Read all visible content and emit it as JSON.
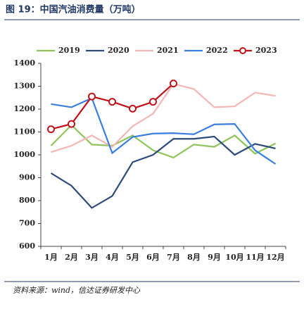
{
  "chart_data": {
    "type": "line",
    "title": "图 19：中国汽油消费量（万吨）",
    "source": "资料来源：wind，信达证券研发中心",
    "categories": [
      "1月",
      "2月",
      "3月",
      "4月",
      "5月",
      "6月",
      "7月",
      "8月",
      "9月",
      "10月",
      "11月",
      "12月"
    ],
    "series": [
      {
        "name": "2019",
        "color": "#8fc45a",
        "values": [
          1040,
          1130,
          1045,
          1040,
          1085,
          1020,
          988,
          1045,
          1035,
          1085,
          1005,
          1050
        ]
      },
      {
        "name": "2020",
        "color": "#2e4a7a",
        "values": [
          920,
          865,
          768,
          820,
          968,
          1000,
          1070,
          1070,
          1080,
          1000,
          1048,
          1028
        ]
      },
      {
        "name": "2021",
        "color": "#f4b6b6",
        "values": [
          1012,
          1040,
          1085,
          1035,
          1125,
          1180,
          1310,
          1288,
          1208,
          1212,
          1272,
          1258
        ]
      },
      {
        "name": "2022",
        "color": "#3a7fe0",
        "values": [
          1222,
          1208,
          1248,
          1008,
          1078,
          1093,
          1095,
          1090,
          1133,
          1135,
          1020,
          960
        ]
      },
      {
        "name": "2023",
        "color": "#c0121b",
        "markers": true,
        "values": [
          1112,
          1135,
          1255,
          1232,
          1202,
          1232,
          1312,
          null,
          null,
          null,
          null,
          null
        ]
      }
    ],
    "ylim": [
      600,
      1400
    ],
    "yticks": [
      600,
      700,
      800,
      900,
      1000,
      1100,
      1200,
      1300,
      1400
    ],
    "legend": "top"
  }
}
